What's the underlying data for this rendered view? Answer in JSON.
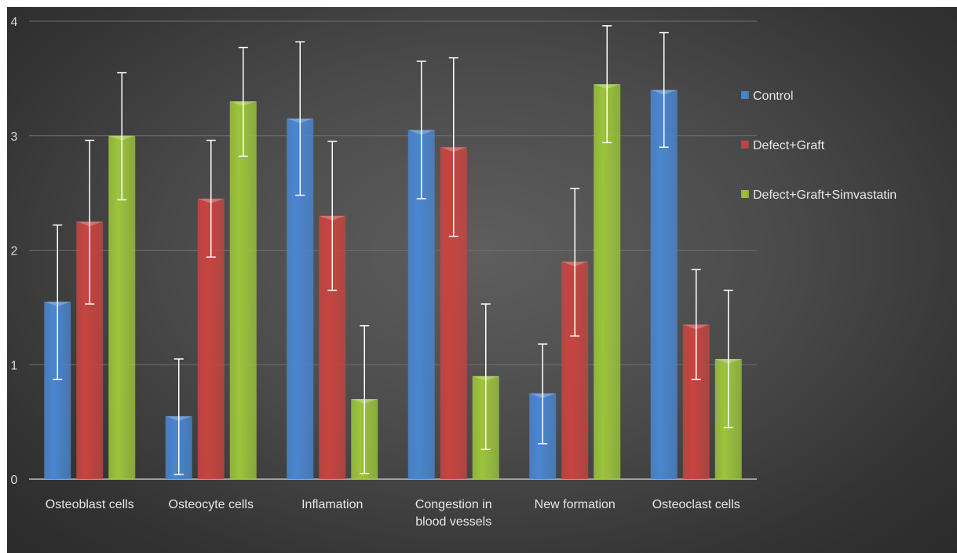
{
  "chart_data": {
    "type": "bar",
    "title": "",
    "xlabel": "",
    "ylabel": "",
    "ylim": [
      0,
      4
    ],
    "yticks": [
      "0",
      "1",
      "2",
      "3",
      "4"
    ],
    "grid": true,
    "legend_position": "right",
    "categories": [
      [
        "Osteoblast cells"
      ],
      [
        "Osteocyte cells"
      ],
      [
        "Inflamation"
      ],
      [
        "Congestion in",
        "blood vessels"
      ],
      [
        "New formation"
      ],
      [
        "Osteoclast cells"
      ]
    ],
    "series": [
      {
        "name": "Control",
        "color": "#4a86d0",
        "values": [
          1.55,
          0.55,
          3.15,
          3.05,
          0.75,
          3.4
        ],
        "err_low": [
          0.87,
          0.04,
          2.48,
          2.45,
          0.31,
          2.9
        ],
        "err_high": [
          2.22,
          1.05,
          3.82,
          3.65,
          1.18,
          3.9
        ]
      },
      {
        "name": "Defect+Graft",
        "color": "#c74440",
        "values": [
          2.25,
          2.45,
          2.3,
          2.9,
          1.9,
          1.35
        ],
        "err_low": [
          1.53,
          1.94,
          1.65,
          2.12,
          1.25,
          0.87
        ],
        "err_high": [
          2.96,
          2.96,
          2.95,
          3.68,
          2.54,
          1.83
        ]
      },
      {
        "name": "Defect+Graft+Simvastatin",
        "color": "#9cc43c",
        "values": [
          3.0,
          3.3,
          0.7,
          0.9,
          3.45,
          1.05
        ],
        "err_low": [
          2.44,
          2.82,
          0.05,
          0.26,
          2.94,
          0.45
        ],
        "err_high": [
          3.55,
          3.77,
          1.34,
          1.53,
          3.96,
          1.65
        ]
      }
    ]
  }
}
